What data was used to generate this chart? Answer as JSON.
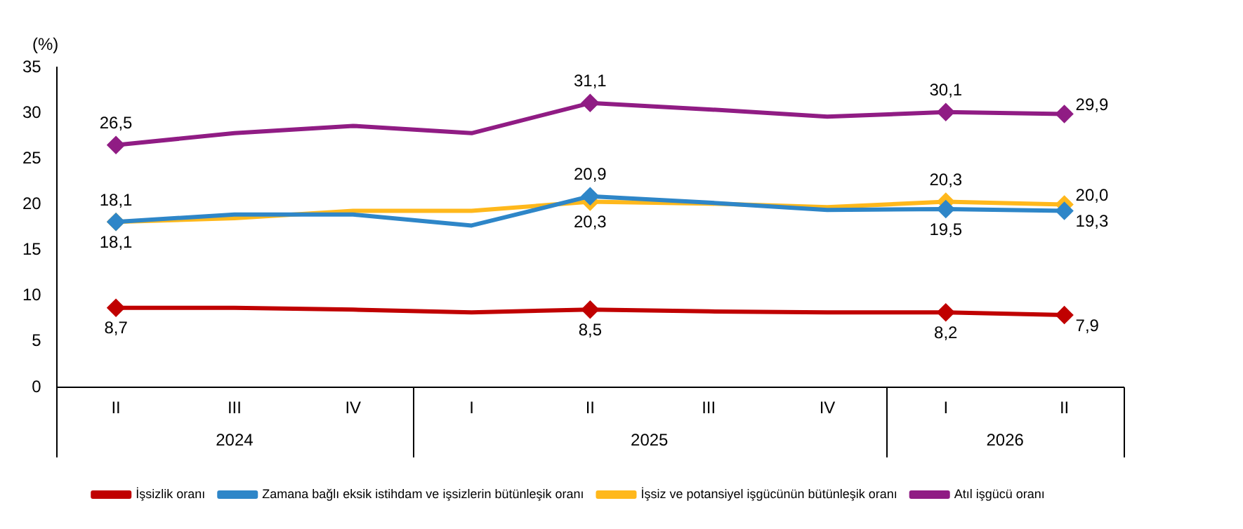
{
  "chart_data": {
    "type": "line",
    "ylabel": "(%)",
    "categories": [
      "II",
      "III",
      "IV",
      "I",
      "II",
      "III",
      "IV",
      "I",
      "II"
    ],
    "annotations": [
      "2024",
      "2025",
      "2026"
    ],
    "ylim": [
      0,
      35
    ],
    "yticks": [
      0,
      5,
      10,
      15,
      20,
      25,
      30,
      35
    ],
    "grid": false,
    "legend": "bottom",
    "line_style": "solid",
    "series": [
      {
        "name": "İşsizlik oranı",
        "color": "#c00000",
        "values": [
          8.7,
          8.7,
          8.5,
          8.2,
          8.5,
          8.3,
          8.2,
          8.2,
          7.9
        ],
        "value_labels": [
          "8,7",
          null,
          null,
          null,
          "8,5",
          null,
          null,
          "8,2",
          "7,9"
        ]
      },
      {
        "name": "Zamana bağlı eksik istihdam ve işsizlerin bütünleşik oranı",
        "color": "#2e86c8",
        "values": [
          18.1,
          18.9,
          18.9,
          17.7,
          20.9,
          20.2,
          19.4,
          19.5,
          19.3
        ],
        "value_labels": [
          "18,1",
          null,
          null,
          null,
          "20,9",
          null,
          null,
          "19,5",
          "19,3"
        ]
      },
      {
        "name": "İşsiz ve potansiyel işgücünün bütünleşik oranı",
        "color": "#ffb81c",
        "values": [
          18.1,
          18.5,
          19.3,
          19.3,
          20.3,
          20.1,
          19.7,
          20.3,
          20.0
        ],
        "value_labels": [
          "18,1",
          null,
          null,
          null,
          "20,3",
          null,
          null,
          "20,3",
          "20,0"
        ]
      },
      {
        "name": "Atıl işgücü oranı",
        "color": "#901c84",
        "values": [
          26.5,
          27.8,
          28.6,
          27.8,
          31.1,
          30.4,
          29.6,
          30.1,
          29.9
        ],
        "value_labels": [
          "26,5",
          null,
          null,
          null,
          "31,1",
          null,
          null,
          "30,1",
          "29,9"
        ]
      }
    ]
  }
}
